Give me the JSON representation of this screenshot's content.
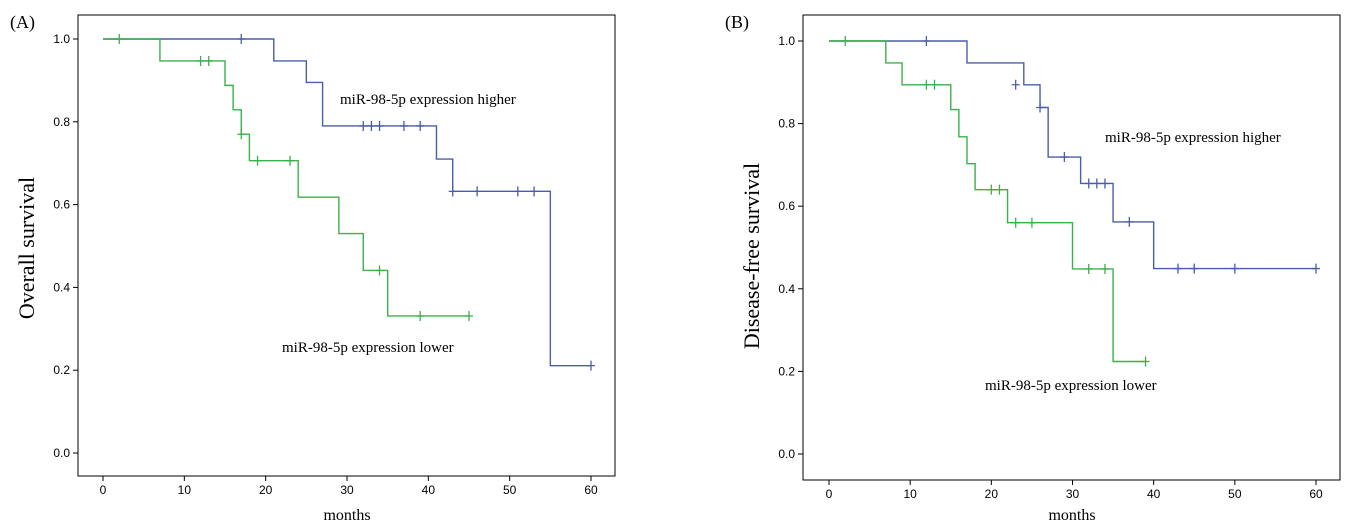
{
  "chart_data": [
    {
      "type": "line",
      "panel_label": "(A)",
      "xlabel": "months",
      "ylabel": "Overall survival",
      "xlim": [
        0,
        60
      ],
      "ylim": [
        0,
        1
      ],
      "xticks": [
        0,
        10,
        20,
        30,
        40,
        50,
        60
      ],
      "yticks": [
        0.0,
        0.2,
        0.4,
        0.6,
        0.8,
        1.0
      ],
      "ytick_labels": [
        "0.0",
        "0.2",
        "0.4",
        "0.6",
        "0.8",
        "1.0"
      ],
      "step": true,
      "series": [
        {
          "annotation": "miR-98-5p expression higher",
          "color": "#4a5ea8",
          "x": [
            0,
            21,
            25,
            27,
            41,
            43,
            55,
            60
          ],
          "y": [
            1.0,
            0.947,
            0.895,
            0.79,
            0.71,
            0.632,
            0.211,
            0.211
          ],
          "censored": [
            [
              17,
              1.0
            ],
            [
              32,
              0.79
            ],
            [
              33,
              0.79
            ],
            [
              34,
              0.79
            ],
            [
              37,
              0.79
            ],
            [
              39,
              0.79
            ],
            [
              43,
              0.632
            ],
            [
              46,
              0.632
            ],
            [
              51,
              0.632
            ],
            [
              53,
              0.632
            ],
            [
              60,
              0.211
            ]
          ]
        },
        {
          "annotation": "miR-98-5p expression lower",
          "color": "#3db04b",
          "x": [
            0,
            7,
            15,
            16,
            17,
            18,
            24,
            29,
            32,
            35,
            45
          ],
          "y": [
            1.0,
            0.947,
            0.888,
            0.829,
            0.77,
            0.706,
            0.618,
            0.53,
            0.441,
            0.331,
            0.331
          ],
          "censored": [
            [
              2,
              1.0
            ],
            [
              12,
              0.947
            ],
            [
              13,
              0.947
            ],
            [
              17,
              0.77
            ],
            [
              19,
              0.706
            ],
            [
              23,
              0.706
            ],
            [
              34,
              0.441
            ],
            [
              39,
              0.331
            ],
            [
              45,
              0.331
            ]
          ]
        }
      ]
    },
    {
      "type": "line",
      "panel_label": "(B)",
      "xlabel": "months",
      "ylabel": "Disease-free survival",
      "xlim": [
        0,
        60
      ],
      "ylim": [
        0,
        1
      ],
      "xticks": [
        0,
        10,
        20,
        30,
        40,
        50,
        60
      ],
      "yticks": [
        0.0,
        0.2,
        0.4,
        0.6,
        0.8,
        1.0
      ],
      "ytick_labels": [
        "0.0",
        "0.2",
        "0.4",
        "0.6",
        "0.8",
        "1.0"
      ],
      "step": true,
      "series": [
        {
          "annotation": "miR-98-5p expression higher",
          "color": "#4a5ea8",
          "x": [
            0,
            17,
            24,
            26,
            27,
            31,
            35,
            40,
            60
          ],
          "y": [
            1.0,
            0.947,
            0.894,
            0.839,
            0.719,
            0.655,
            0.562,
            0.449,
            0.449
          ],
          "censored": [
            [
              12,
              1.0
            ],
            [
              23,
              0.894
            ],
            [
              26,
              0.839
            ],
            [
              29,
              0.719
            ],
            [
              32,
              0.655
            ],
            [
              33,
              0.655
            ],
            [
              34,
              0.655
            ],
            [
              37,
              0.562
            ],
            [
              43,
              0.449
            ],
            [
              45,
              0.449
            ],
            [
              50,
              0.449
            ],
            [
              60,
              0.449
            ]
          ]
        },
        {
          "annotation": "miR-98-5p expression lower",
          "color": "#3db04b",
          "x": [
            0,
            7,
            9,
            15,
            16,
            17,
            18,
            22,
            30,
            35,
            39
          ],
          "y": [
            1.0,
            0.947,
            0.894,
            0.834,
            0.768,
            0.703,
            0.64,
            0.56,
            0.448,
            0.224,
            0.224
          ],
          "censored": [
            [
              2,
              1.0
            ],
            [
              12,
              0.894
            ],
            [
              13,
              0.894
            ],
            [
              20,
              0.64
            ],
            [
              21,
              0.64
            ],
            [
              23,
              0.56
            ],
            [
              25,
              0.56
            ],
            [
              32,
              0.448
            ],
            [
              34,
              0.448
            ],
            [
              39,
              0.224
            ]
          ]
        }
      ]
    }
  ]
}
